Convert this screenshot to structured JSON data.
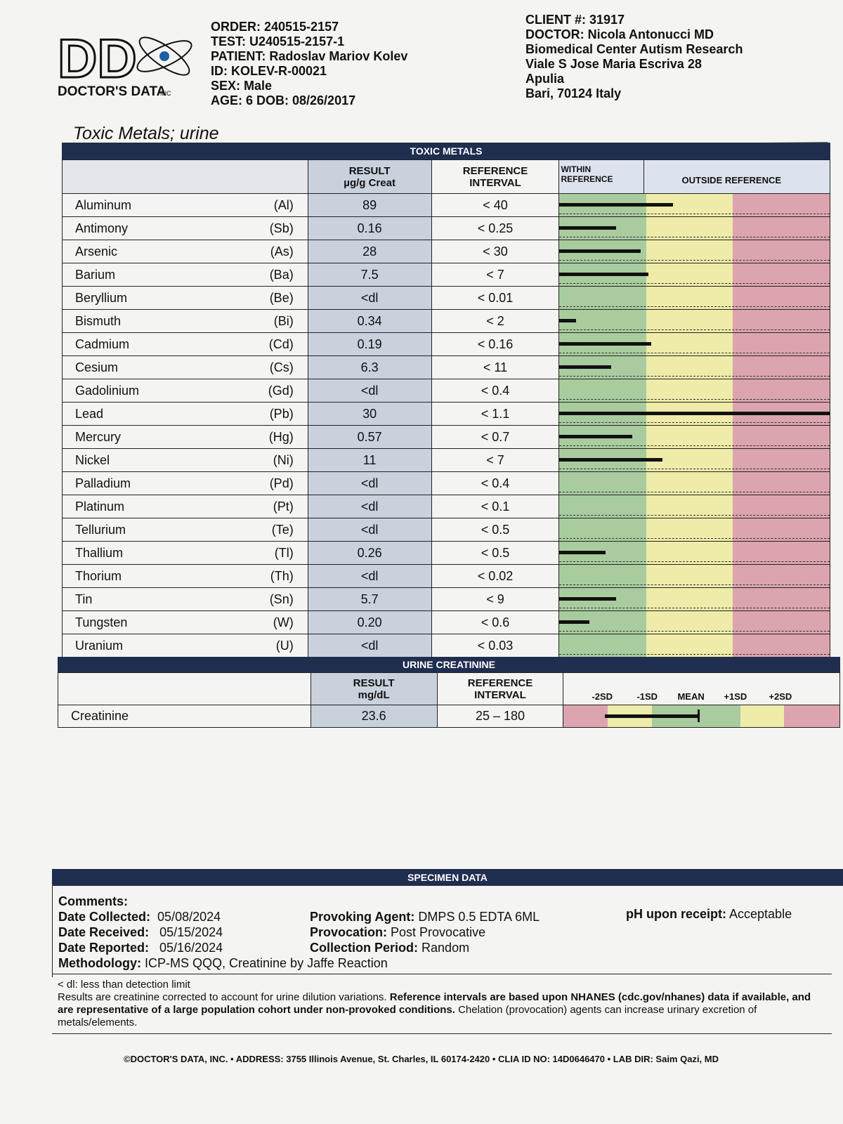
{
  "header": {
    "logo_text": "DOCTOR'S DATA",
    "logo_inc": "INC",
    "order": "ORDER: 240515-2157",
    "test": "TEST: U240515-2157-1",
    "patient": "PATIENT: Radoslav Mariov Kolev",
    "id": "ID: KOLEV-R-00021",
    "sex": "SEX: Male",
    "age_dob": "AGE: 6 DOB: 08/26/2017",
    "client": "CLIENT #: 31917",
    "doctor": "DOCTOR: Nicola Antonucci MD",
    "org": "Biomedical Center Autism Research",
    "address1": "Viale S Jose Maria Escriva 28",
    "address2": "Apulia",
    "address3": "Bari, 70124 Italy"
  },
  "title": "Toxic Metals; urine",
  "toxic_metals": {
    "band": "TOXIC METALS",
    "col_result_1": "RESULT",
    "col_result_2": "µg/g Creat",
    "col_ref_1": "REFERENCE",
    "col_ref_2": "INTERVAL",
    "col_within_1": "WITHIN",
    "col_within_2": "REFERENCE",
    "col_outside": "OUTSIDE REFERENCE",
    "rows": [
      {
        "name": "Aluminum",
        "symbol": "(Al)",
        "result": "89",
        "ref": "< 40",
        "level": 0.42
      },
      {
        "name": "Antimony",
        "symbol": "(Sb)",
        "result": "0.16",
        "ref": "< 0.25",
        "level": 0.21
      },
      {
        "name": "Arsenic",
        "symbol": "(As)",
        "result": "28",
        "ref": "< 30",
        "level": 0.3
      },
      {
        "name": "Barium",
        "symbol": "(Ba)",
        "result": "7.5",
        "ref": "< 7",
        "level": 0.33
      },
      {
        "name": "Beryllium",
        "symbol": "(Be)",
        "result": "<dl",
        "ref": "< 0.01",
        "level": 0
      },
      {
        "name": "Bismuth",
        "symbol": "(Bi)",
        "result": "0.34",
        "ref": "< 2",
        "level": 0.06
      },
      {
        "name": "Cadmium",
        "symbol": "(Cd)",
        "result": "0.19",
        "ref": "< 0.16",
        "level": 0.34
      },
      {
        "name": "Cesium",
        "symbol": "(Cs)",
        "result": "6.3",
        "ref": "< 11",
        "level": 0.19
      },
      {
        "name": "Gadolinium",
        "symbol": "(Gd)",
        "result": "<dl",
        "ref": "< 0.4",
        "level": 0
      },
      {
        "name": "Lead",
        "symbol": "(Pb)",
        "result": "30",
        "ref": "< 1.1",
        "level": 1.0
      },
      {
        "name": "Mercury",
        "symbol": "(Hg)",
        "result": "0.57",
        "ref": "< 0.7",
        "level": 0.27
      },
      {
        "name": "Nickel",
        "symbol": "(Ni)",
        "result": "11",
        "ref": "< 7",
        "level": 0.38
      },
      {
        "name": "Palladium",
        "symbol": "(Pd)",
        "result": "<dl",
        "ref": "< 0.4",
        "level": 0
      },
      {
        "name": "Platinum",
        "symbol": "(Pt)",
        "result": "<dl",
        "ref": "< 0.1",
        "level": 0
      },
      {
        "name": "Tellurium",
        "symbol": "(Te)",
        "result": "<dl",
        "ref": "< 0.5",
        "level": 0
      },
      {
        "name": "Thallium",
        "symbol": "(Tl)",
        "result": "0.26",
        "ref": "< 0.5",
        "level": 0.17
      },
      {
        "name": "Thorium",
        "symbol": "(Th)",
        "result": "<dl",
        "ref": "< 0.02",
        "level": 0
      },
      {
        "name": "Tin",
        "symbol": "(Sn)",
        "result": "5.7",
        "ref": "< 9",
        "level": 0.21
      },
      {
        "name": "Tungsten",
        "symbol": "(W)",
        "result": "0.20",
        "ref": "< 0.6",
        "level": 0.11
      },
      {
        "name": "Uranium",
        "symbol": "(U)",
        "result": "<dl",
        "ref": "< 0.03",
        "level": 0
      }
    ],
    "colors": {
      "green": "#a8cc9e",
      "yellow": "#eeeca8",
      "red": "#dca4ae",
      "header_band": "#1f2d4f",
      "result_col": "#c9d1dd"
    }
  },
  "creatinine": {
    "band": "URINE CREATININE",
    "col_result_1": "RESULT",
    "col_result_2": "mg/dL",
    "col_ref_1": "REFERENCE",
    "col_ref_2": "INTERVAL",
    "sd_labels": [
      "-2SD",
      "-1SD",
      "MEAN",
      "+1SD",
      "+2SD"
    ],
    "name": "Creatinine",
    "result": "23.6",
    "ref": "25 – 180",
    "bar_start": 0.15,
    "bar_end": 0.49
  },
  "specimen": {
    "band": "SPECIMEN DATA",
    "comments": "Comments:",
    "collected_label": "Date Collected:",
    "collected": "05/08/2024",
    "received_label": "Date Received:",
    "received": "05/15/2024",
    "reported_label": "Date Reported:",
    "reported": "05/16/2024",
    "method_label": "Methodology:",
    "method": "ICP-MS QQQ, Creatinine by Jaffe Reaction",
    "agent_label": "Provoking Agent:",
    "agent": "DMPS 0.5 EDTA 6ML",
    "provocation_label": "Provocation:",
    "provocation": "Post Provocative",
    "period_label": "Collection Period:",
    "period": "Random",
    "ph_label": "pH upon receipt:",
    "ph": "Acceptable"
  },
  "notes": {
    "dl": "< dl: less than detection limit",
    "p1": "Results are creatinine corrected to account for urine dilution variations.",
    "p2": "Reference intervals are based upon NHANES (cdc.gov/nhanes) data if available, and are representative of a large population cohort under non-provoked conditions.",
    "p3": "Chelation (provocation) agents can increase urinary excretion of metals/elements."
  },
  "footer": "©DOCTOR'S DATA, INC. • ADDRESS: 3755 Illinois Avenue, St. Charles, IL 60174-2420 • CLIA ID NO: 14D0646470 • LAB DIR: Saim Qazi, MD"
}
